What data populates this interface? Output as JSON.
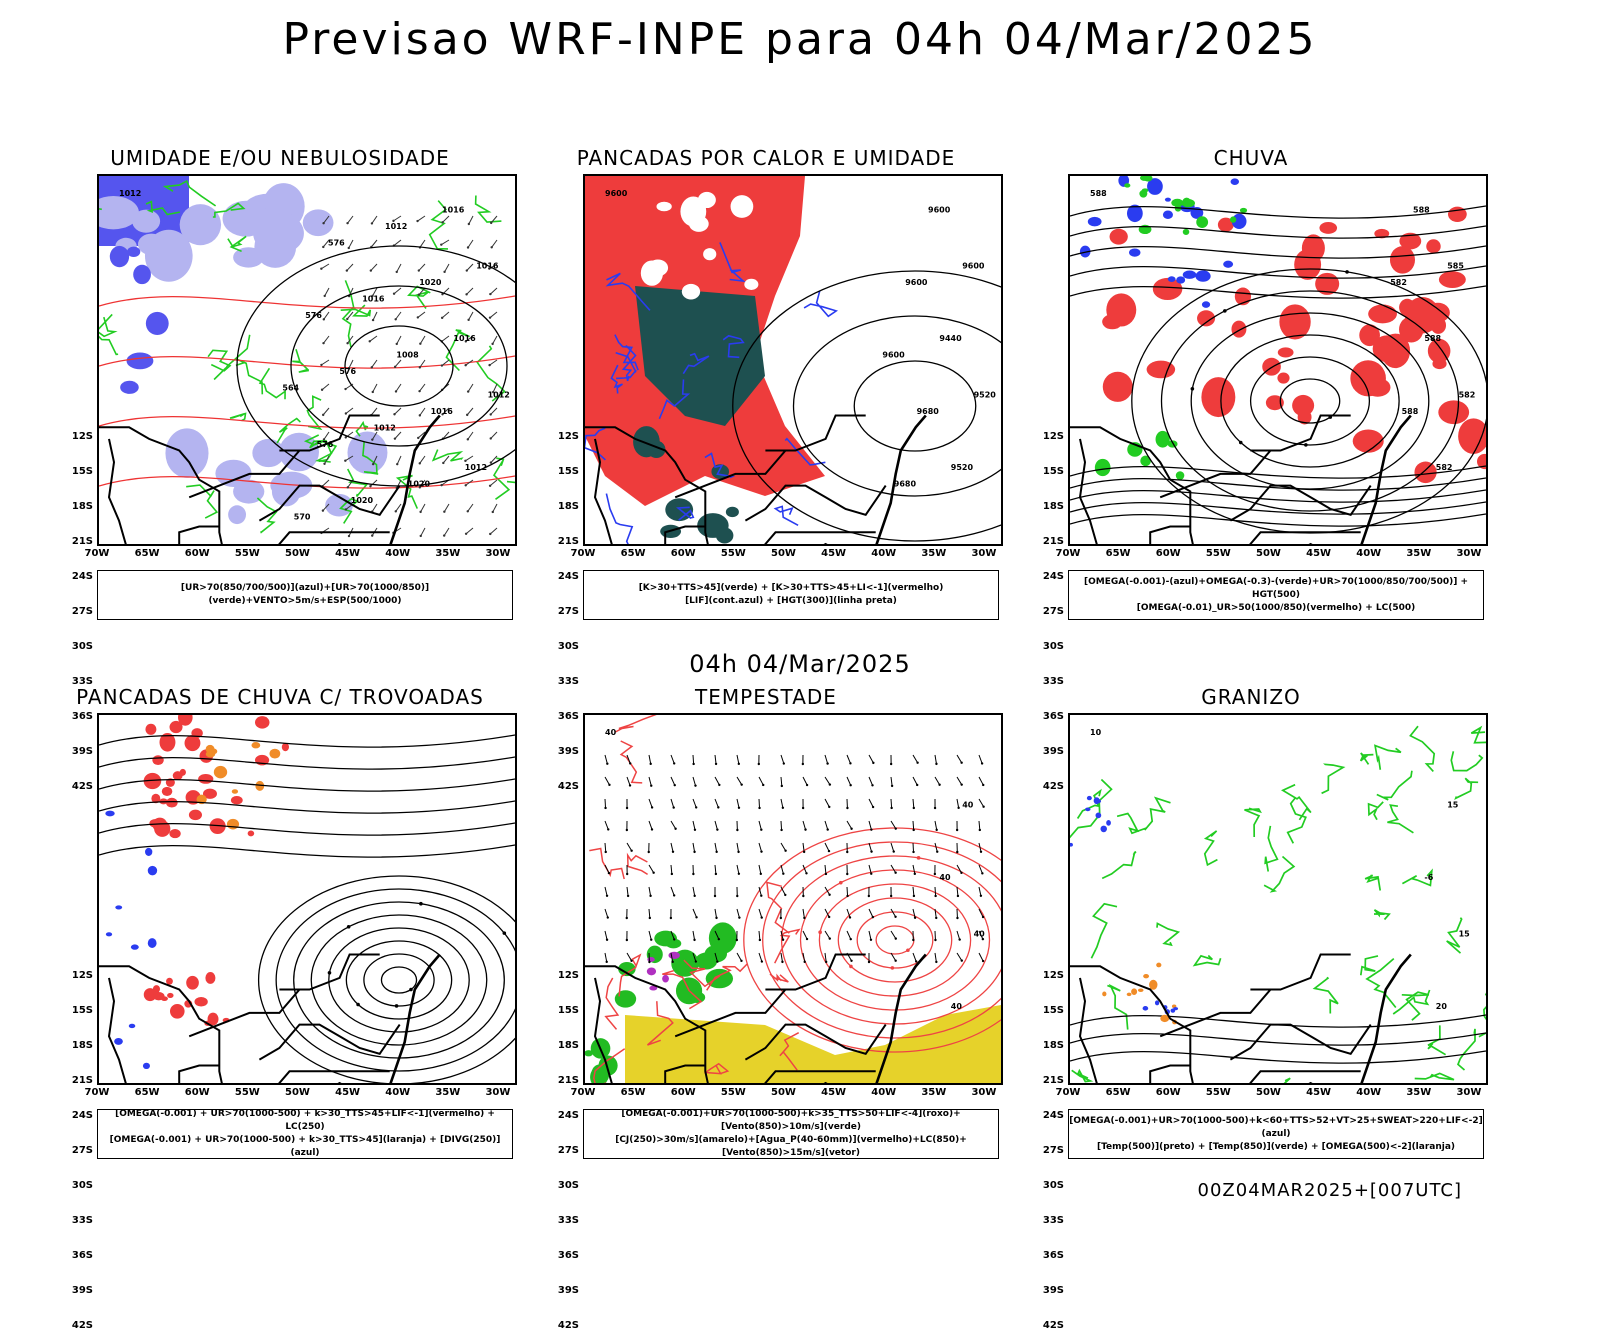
{
  "header": {
    "title": "Previsao WRF-INPE  para 04h 04/Mar/2025"
  },
  "middle": {
    "title": "04h 04/Mar/2025"
  },
  "footer": {
    "run": "00Z04MAR2025+[007UTC]"
  },
  "axes": {
    "lat": [
      "12S",
      "15S",
      "18S",
      "21S",
      "24S",
      "27S",
      "30S",
      "33S",
      "36S",
      "39S",
      "42S"
    ],
    "lon": [
      "70W",
      "65W",
      "60W",
      "55W",
      "50W",
      "45W",
      "40W",
      "35W",
      "30W"
    ]
  },
  "panels": [
    {
      "title": "UMIDADE E/OU NEBULOSIDADE",
      "legend": [
        "[UR>70(850/700/500)](azul)+[UR>70(1000/850)](verde)+VENTO>5m/s+ESP(500/1000)"
      ],
      "contour_labels": [
        "1012",
        "1012",
        "1016",
        "1012",
        "1016",
        "1016",
        "1016",
        "1020",
        "1020",
        "1008",
        "1012",
        "1012",
        "1016",
        "1020",
        "576",
        "576",
        "576",
        "576",
        "570",
        "564"
      ],
      "colors": {
        "blue": "#5555ee",
        "light_blue": "#b4b4f0",
        "green": "#22cc22",
        "red_dash": "#ee3333"
      }
    },
    {
      "title": "PANCADAS POR CALOR E UMIDADE",
      "legend": [
        "[K>30+TTS>45](verde) + [K>30+TTS>45+LI<-1](vermelho)",
        "[LIF](cont.azul) + [HGT(300)](linha preta)"
      ],
      "contour_labels": [
        "9600",
        "9520",
        "9600",
        "9520",
        "9440",
        "9600",
        "9680",
        "9600",
        "9680",
        "9600"
      ],
      "colors": {
        "red": "#ee3c3c",
        "dark_green": "#1e5050",
        "blue": "#2a3cf0"
      }
    },
    {
      "title": "CHUVA",
      "legend": [
        "[OMEGA(-0.001)-(azul)+OMEGA(-0.3)-(verde)+UR>70(1000/850/700/500)] + HGT(500)",
        "[OMEGA(-0.01)_UR>50(1000/850)(vermelho) + LC(500)"
      ],
      "contour_labels": [
        "588",
        "582",
        "585",
        "582",
        "588",
        "588",
        "588",
        "582"
      ],
      "colors": {
        "red": "#ee3c3c",
        "blue": "#2a3cf0",
        "green": "#22cc22"
      }
    },
    {
      "title": "PANCADAS DE CHUVA C/ TROVOADAS",
      "legend": [
        "[OMEGA(-0.001) + UR>70(1000-500) + k>30_TTS>45+LIF<-1](vermelho) + LC(250)",
        "[OMEGA(-0.001) + UR>70(1000-500) + k>30_TTS>45](laranja) + [DIVG(250)](azul)"
      ],
      "contour_labels": [],
      "colors": {
        "red": "#ee3c3c",
        "orange": "#f08c28",
        "blue": "#2a3cf0"
      }
    },
    {
      "title": "TEMPESTADE",
      "legend": [
        "[OMEGA(-0.001)+UR>70(1000-500)+k>35_TTS>50+LIF<-4](roxo)+[Vento(850)>10m/s](verde)",
        "[CJ(250)>30m/s](amarelo)+[Agua_P(40-60mm)](vermelho)+LC(850)+[Vento(850)>15m/s](vetor)"
      ],
      "contour_labels": [
        "40",
        "40",
        "40",
        "40",
        "40"
      ],
      "colors": {
        "red": "#ee4444",
        "green": "#22bb22",
        "yellow": "#e6d22a",
        "purple": "#b030c0"
      }
    },
    {
      "title": "GRANIZO",
      "legend": [
        "[OMEGA(-0.001)+UR>70(1000-500)+k<60+TTS>52+VT>25+SWEAT>220+LIF<-2](azul)",
        "[Temp(500)](preto) + [Temp(850)](verde) + [OMEGA(500)<-2](laranja)"
      ],
      "contour_labels": [
        "10",
        "15",
        "15",
        "20",
        "-6"
      ],
      "colors": {
        "green": "#22cc22",
        "orange": "#f08c28",
        "blue": "#2a3cf0"
      }
    }
  ]
}
